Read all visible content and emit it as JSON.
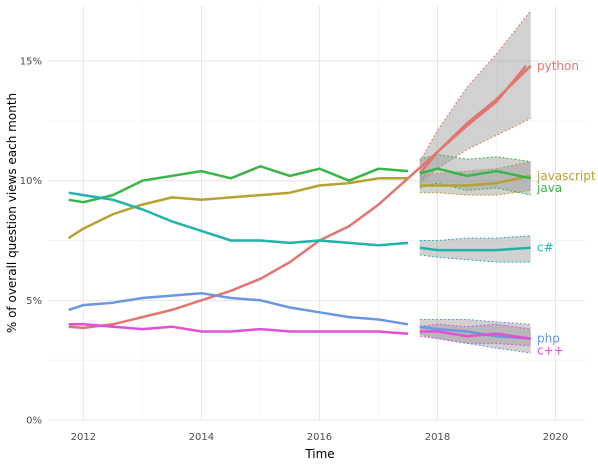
{
  "chart_data": {
    "type": "line",
    "title": "",
    "xlabel": "Time",
    "ylabel": "% of overall question views each month",
    "xlim": [
      2011.4,
      2020.5
    ],
    "ylim": [
      0,
      17.3
    ],
    "x_ticks": [
      2012,
      2014,
      2016,
      2018,
      2020
    ],
    "x_tick_labels": [
      "2012",
      "2014",
      "2016",
      "2018",
      "2020"
    ],
    "y_ticks": [
      0,
      5,
      10,
      15
    ],
    "y_tick_labels": [
      "0%",
      "5%",
      "10%",
      "15%"
    ],
    "grid": true,
    "legend": "direct labels at right end of each line",
    "forecast_start": 2017.7,
    "series": [
      {
        "name": "python",
        "color": "#e0766f",
        "x": [
          2011.75,
          2012.0,
          2012.5,
          2013.0,
          2013.5,
          2014.0,
          2014.5,
          2015.0,
          2015.5,
          2016.0,
          2016.5,
          2017.0,
          2017.5,
          2018.0,
          2018.5,
          2019.0,
          2019.5
        ],
        "y": [
          3.9,
          3.85,
          4.0,
          4.3,
          4.6,
          5.0,
          5.4,
          5.9,
          6.6,
          7.5,
          8.1,
          9.0,
          10.1,
          11.2,
          12.3,
          13.3,
          14.8
        ],
        "forecast_x": [
          2017.7,
          2018.0,
          2018.5,
          2019.0,
          2019.58
        ],
        "forecast_y": [
          10.3,
          11.2,
          12.4,
          13.4,
          14.8
        ],
        "forecast_upper": [
          10.8,
          12.1,
          13.9,
          15.3,
          17.1
        ],
        "forecast_lower": [
          9.9,
          10.5,
          11.3,
          11.9,
          12.6
        ]
      },
      {
        "name": "javascript",
        "color": "#b4a333",
        "x": [
          2011.75,
          2012.0,
          2012.5,
          2013.0,
          2013.5,
          2014.0,
          2014.5,
          2015.0,
          2015.5,
          2016.0,
          2016.5,
          2017.0,
          2017.5
        ],
        "y": [
          7.6,
          8.0,
          8.6,
          9.0,
          9.3,
          9.2,
          9.3,
          9.4,
          9.5,
          9.8,
          9.9,
          10.1,
          10.1
        ],
        "forecast_x": [
          2017.7,
          2018.0,
          2018.5,
          2019.0,
          2019.58
        ],
        "forecast_y": [
          9.8,
          9.8,
          9.8,
          9.9,
          10.2
        ],
        "forecast_upper": [
          10.2,
          10.3,
          10.4,
          10.5,
          10.8
        ],
        "forecast_lower": [
          9.5,
          9.5,
          9.4,
          9.4,
          9.6
        ]
      },
      {
        "name": "java",
        "color": "#3ab54a",
        "x": [
          2011.75,
          2012.0,
          2012.5,
          2013.0,
          2013.5,
          2014.0,
          2014.5,
          2015.0,
          2015.5,
          2016.0,
          2016.5,
          2017.0,
          2017.5
        ],
        "y": [
          9.2,
          9.1,
          9.4,
          10.0,
          10.2,
          10.4,
          10.1,
          10.6,
          10.2,
          10.5,
          10.0,
          10.5,
          10.4
        ],
        "forecast_x": [
          2017.7,
          2018.0,
          2018.5,
          2019.0,
          2019.58
        ],
        "forecast_y": [
          10.3,
          10.5,
          10.2,
          10.4,
          10.1
        ],
        "forecast_upper": [
          10.9,
          11.1,
          10.9,
          11.0,
          10.8
        ],
        "forecast_lower": [
          9.7,
          9.9,
          9.6,
          9.7,
          9.4
        ]
      },
      {
        "name": "c#",
        "color": "#22b2ab",
        "x": [
          2011.75,
          2012.0,
          2012.5,
          2013.0,
          2013.5,
          2014.0,
          2014.5,
          2015.0,
          2015.5,
          2016.0,
          2016.5,
          2017.0,
          2017.5
        ],
        "y": [
          9.5,
          9.4,
          9.2,
          8.8,
          8.3,
          7.9,
          7.5,
          7.5,
          7.4,
          7.5,
          7.4,
          7.3,
          7.4
        ],
        "forecast_x": [
          2017.7,
          2018.0,
          2018.5,
          2019.0,
          2019.58
        ],
        "forecast_y": [
          7.2,
          7.1,
          7.1,
          7.1,
          7.2
        ],
        "forecast_upper": [
          7.5,
          7.5,
          7.6,
          7.6,
          7.7
        ],
        "forecast_lower": [
          6.9,
          6.8,
          6.7,
          6.6,
          6.6
        ]
      },
      {
        "name": "php",
        "color": "#6b96e0",
        "x": [
          2011.75,
          2012.0,
          2012.5,
          2013.0,
          2013.5,
          2014.0,
          2014.5,
          2015.0,
          2015.5,
          2016.0,
          2016.5,
          2017.0,
          2017.5
        ],
        "y": [
          4.6,
          4.8,
          4.9,
          5.1,
          5.2,
          5.3,
          5.1,
          5.0,
          4.7,
          4.5,
          4.3,
          4.2,
          4.0
        ],
        "forecast_x": [
          2017.7,
          2018.0,
          2018.5,
          2019.0,
          2019.58
        ],
        "forecast_y": [
          3.9,
          3.8,
          3.7,
          3.5,
          3.4
        ],
        "forecast_upper": [
          4.2,
          4.2,
          4.2,
          4.1,
          4.0
        ],
        "forecast_lower": [
          3.6,
          3.4,
          3.2,
          3.0,
          2.8
        ]
      },
      {
        "name": "c++",
        "color": "#e34fd6",
        "x": [
          2011.75,
          2012.0,
          2012.5,
          2013.0,
          2013.5,
          2014.0,
          2014.5,
          2015.0,
          2015.5,
          2016.0,
          2016.5,
          2017.0,
          2017.5
        ],
        "y": [
          4.0,
          4.0,
          3.9,
          3.8,
          3.9,
          3.7,
          3.7,
          3.8,
          3.7,
          3.7,
          3.7,
          3.7,
          3.6
        ],
        "forecast_x": [
          2017.7,
          2018.0,
          2018.5,
          2019.0,
          2019.58
        ],
        "forecast_y": [
          3.7,
          3.7,
          3.5,
          3.6,
          3.4
        ],
        "forecast_upper": [
          3.9,
          4.0,
          3.9,
          4.0,
          3.8
        ],
        "forecast_lower": [
          3.5,
          3.4,
          3.2,
          3.2,
          3.1
        ]
      }
    ]
  }
}
